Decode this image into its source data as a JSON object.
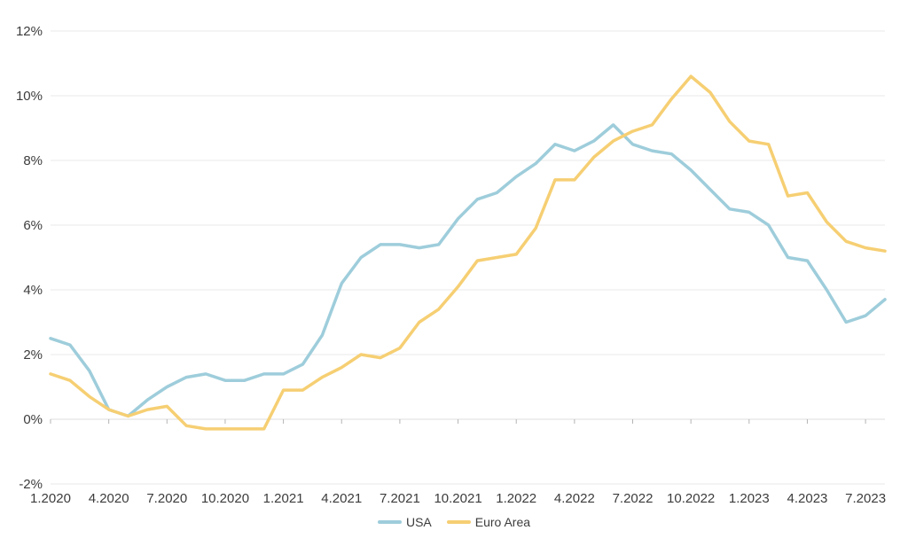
{
  "chart_data": {
    "type": "line",
    "title": "",
    "xlabel": "",
    "ylabel": "",
    "x": [
      "1.2020",
      "2.2020",
      "3.2020",
      "4.2020",
      "5.2020",
      "6.2020",
      "7.2020",
      "8.2020",
      "9.2020",
      "10.2020",
      "11.2020",
      "12.2020",
      "1.2021",
      "2.2021",
      "3.2021",
      "4.2021",
      "5.2021",
      "6.2021",
      "7.2021",
      "8.2021",
      "9.2021",
      "10.2021",
      "11.2021",
      "12.2021",
      "1.2022",
      "2.2022",
      "3.2022",
      "4.2022",
      "5.2022",
      "6.2022",
      "7.2022",
      "8.2022",
      "9.2022",
      "10.2022",
      "11.2022",
      "12.2022",
      "1.2023",
      "2.2023",
      "3.2023",
      "4.2023",
      "5.2023",
      "6.2023",
      "7.2023",
      "8.2023"
    ],
    "series": [
      {
        "name": "USA",
        "color": "#9ecddb",
        "values": [
          2.5,
          2.3,
          1.5,
          0.3,
          0.1,
          0.6,
          1.0,
          1.3,
          1.4,
          1.2,
          1.2,
          1.4,
          1.4,
          1.7,
          2.6,
          4.2,
          5.0,
          5.4,
          5.4,
          5.3,
          5.4,
          6.2,
          6.8,
          7.0,
          7.5,
          7.9,
          8.5,
          8.3,
          8.6,
          9.1,
          8.5,
          8.3,
          8.2,
          7.7,
          7.1,
          6.5,
          6.4,
          6.0,
          5.0,
          4.9,
          4.0,
          3.0,
          3.2,
          3.7
        ]
      },
      {
        "name": "Euro Area",
        "color": "#f6cf73",
        "values": [
          1.4,
          1.2,
          0.7,
          0.3,
          0.1,
          0.3,
          0.4,
          -0.2,
          -0.3,
          -0.3,
          -0.3,
          -0.3,
          0.9,
          0.9,
          1.3,
          1.6,
          2.0,
          1.9,
          2.2,
          3.0,
          3.4,
          4.1,
          4.9,
          5.0,
          5.1,
          5.9,
          7.4,
          7.4,
          8.1,
          8.6,
          8.9,
          9.1,
          9.9,
          10.6,
          10.1,
          9.2,
          8.6,
          8.5,
          6.9,
          7.0,
          6.1,
          5.5,
          5.3,
          5.2
        ]
      }
    ],
    "ylim": [
      -2,
      12
    ],
    "y_ticks": [
      12,
      10,
      8,
      6,
      4,
      2,
      0,
      -2
    ],
    "y_tick_labels": [
      "12%",
      "10%",
      "8%",
      "6%",
      "4%",
      "2%",
      "0%",
      "-2%"
    ],
    "x_tick_labels": [
      "1.2020",
      "4.2020",
      "7.2020",
      "10.2020",
      "1.2021",
      "4.2021",
      "7.2021",
      "10.2021",
      "1.2022",
      "4.2022",
      "7.2022",
      "10.2022",
      "1.2023",
      "4.2023",
      "7.2023"
    ],
    "x_tick_every": 3,
    "grid": "horizontal",
    "legend_position": "bottom-center",
    "zero_axis_ticks": true
  },
  "legend": {
    "items": [
      {
        "label": "USA",
        "color": "#9ecddb"
      },
      {
        "label": "Euro Area",
        "color": "#f6cf73"
      }
    ]
  },
  "colors": {
    "background": "#ffffff",
    "grid": "#e9e9e9",
    "zero_axis": "#dcdcdc",
    "tick": "#b5b5b5",
    "text": "#3c3c3c"
  }
}
